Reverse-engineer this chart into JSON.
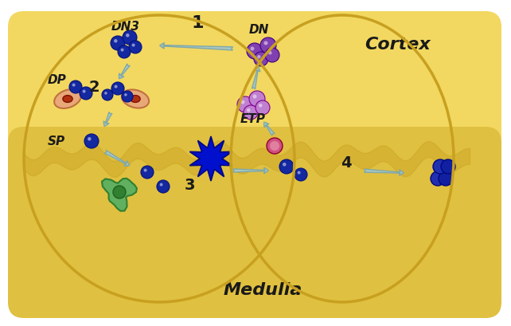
{
  "bg_color": "#FFFFFF",
  "thymus_fill": "#F5E070",
  "thymus_stroke": "#E8C840",
  "cortex_fill": "#F0D060",
  "medulla_fill": "#E8C850",
  "border_color": "#C8A020",
  "cortex_label": "Cortex",
  "medulla_label": "Medulla",
  "labels": {
    "DN3": "DN3",
    "DN": "DN",
    "ETP": "ETP",
    "DP": "DP",
    "SP": "SP"
  },
  "step_numbers": [
    "1",
    "2",
    "3",
    "4"
  ],
  "arrow_color": "#A8C8C0",
  "cell_blue": "#1428A0",
  "cell_purple": "#8040B0",
  "cell_light_purple": "#C080D0",
  "cell_green": "#50A050",
  "cell_blue_bright": "#0020DD",
  "cortex_border": "#C09000"
}
